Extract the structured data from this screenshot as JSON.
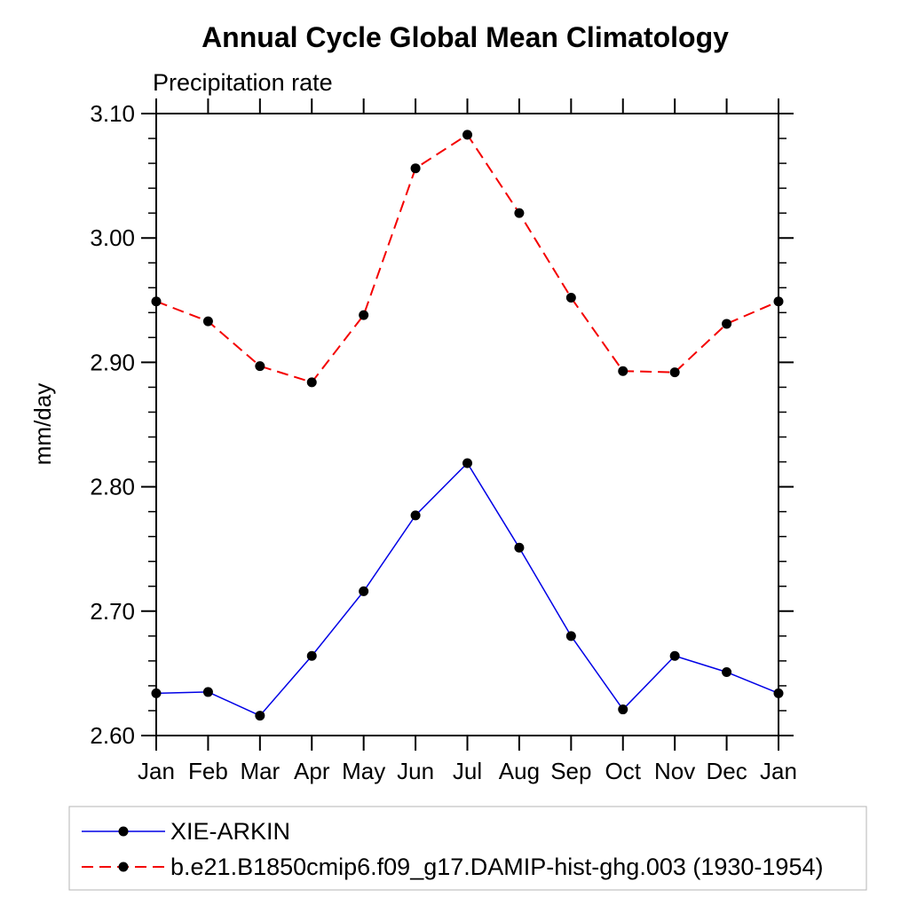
{
  "page": {
    "background": "#ffffff"
  },
  "chart_data": {
    "type": "line",
    "title": "Annual Cycle Global Mean Climatology",
    "subtitle": "Precipitation rate",
    "ylabel": "mm/day",
    "xlabel": "",
    "x_categories": [
      "Jan",
      "Feb",
      "Mar",
      "Apr",
      "May",
      "Jun",
      "Jul",
      "Aug",
      "Sep",
      "Oct",
      "Nov",
      "Dec",
      "Jan"
    ],
    "ylim": [
      2.6,
      3.1
    ],
    "y_major_ticks": [
      3.1,
      3.0,
      2.9,
      2.8,
      2.7,
      2.6
    ],
    "y_major_tick_labels": [
      "3.10",
      "3.00",
      "2.90",
      "2.80",
      "2.70",
      "2.60"
    ],
    "y_minor_step": 0.02,
    "grid": false,
    "legend_position": "bottom",
    "axis_color": "#000000",
    "marker_color": "#000000",
    "legend_border_color": "#b5b5b5",
    "series": [
      {
        "name": "XIE-ARKIN",
        "color": "#0000e6",
        "style": "solid",
        "marker": "circle",
        "values": [
          2.634,
          2.635,
          2.616,
          2.664,
          2.716,
          2.777,
          2.819,
          2.751,
          2.68,
          2.621,
          2.664,
          2.651,
          2.634
        ]
      },
      {
        "name": "b.e21.B1850cmip6.f09_g17.DAMIP-hist-ghg.003 (1930-1954)",
        "color": "#f40000",
        "style": "dashed",
        "marker": "circle",
        "values": [
          2.949,
          2.933,
          2.897,
          2.884,
          2.938,
          3.056,
          3.083,
          3.02,
          2.952,
          2.893,
          2.892,
          2.931,
          2.949
        ]
      }
    ]
  }
}
